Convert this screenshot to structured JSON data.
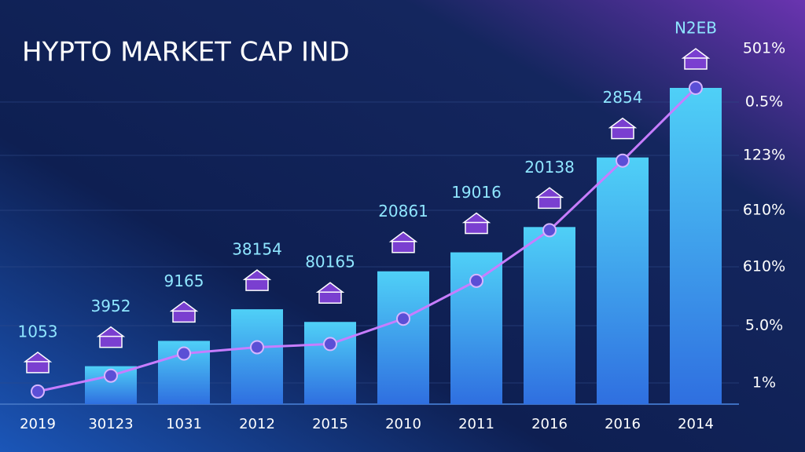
{
  "chart_data": {
    "type": "bar",
    "title": "HYPTO MARKET CAP IND",
    "categories": [
      "2019",
      "30123",
      "1031",
      "2012",
      "2015",
      "2010",
      "2011",
      "2016",
      "2016",
      "2014"
    ],
    "ylim": [
      0,
      100
    ],
    "series": [
      {
        "type": "bar",
        "color": "#4fd0f7",
        "values": [
          null,
          12,
          20,
          30,
          26,
          42,
          48,
          56,
          78,
          100
        ]
      },
      {
        "type": "line",
        "color": "#c77dff",
        "values": [
          4,
          9,
          16,
          18,
          19,
          27,
          39,
          55,
          77,
          100
        ]
      }
    ],
    "annotations": [
      "1053",
      "3952",
      "9165",
      "38154",
      "80165",
      "20861",
      "19016",
      "20138",
      "2854",
      "N2EB"
    ],
    "right_labels": [
      "501%",
      "0.5%",
      "123%",
      "610%",
      "610%",
      "5.0%",
      "1%"
    ]
  }
}
